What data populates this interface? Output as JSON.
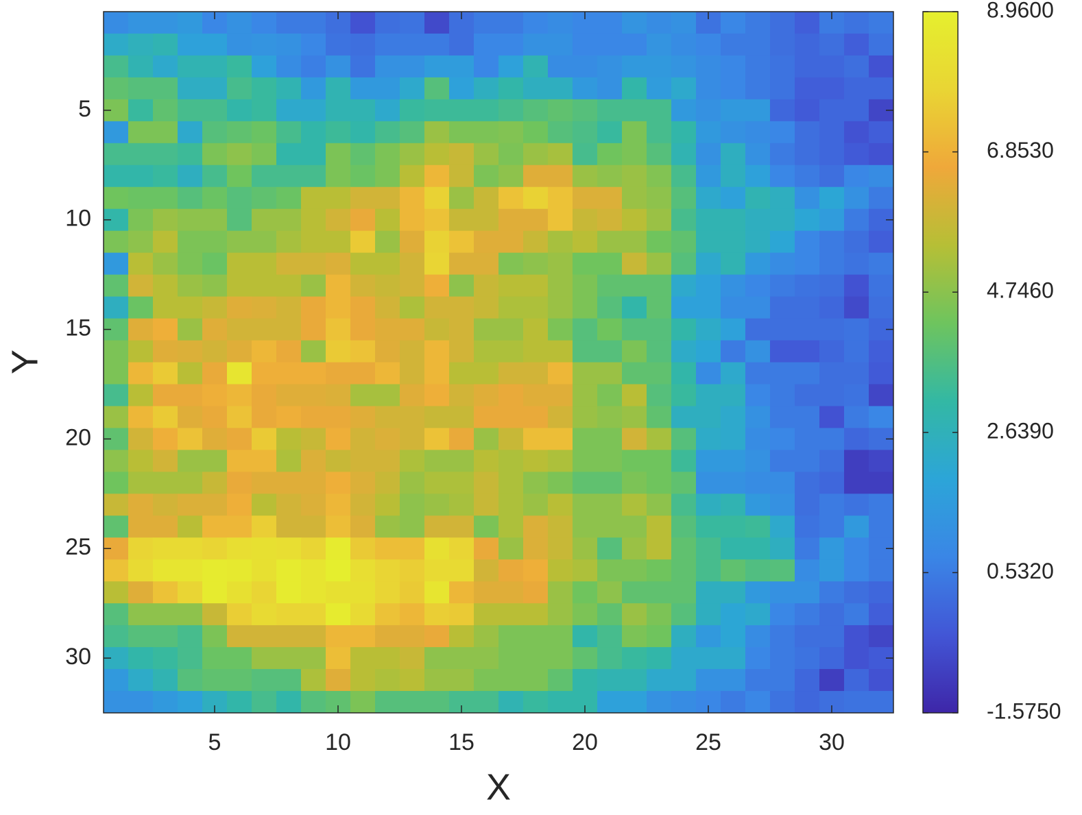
{
  "chart_data": {
    "type": "heatmap",
    "x_label": "X",
    "y_label": "Y",
    "x": [
      1,
      2,
      3,
      4,
      5,
      6,
      7,
      8,
      9,
      10,
      11,
      12,
      13,
      14,
      15,
      16,
      17,
      18,
      19,
      20,
      21,
      22,
      23,
      24,
      25,
      26,
      27,
      28,
      29,
      30,
      31,
      32
    ],
    "y": [
      1,
      2,
      3,
      4,
      5,
      6,
      7,
      8,
      9,
      10,
      11,
      12,
      13,
      14,
      15,
      16,
      17,
      18,
      19,
      20,
      21,
      22,
      23,
      24,
      25,
      26,
      27,
      28,
      29,
      30,
      31,
      32
    ],
    "xlim": [
      0.5,
      32.5
    ],
    "ylim": [
      32.5,
      0.5
    ],
    "xticks": [
      5,
      10,
      15,
      20,
      25,
      30
    ],
    "yticks": [
      5,
      10,
      15,
      20,
      25,
      30
    ],
    "clim": [
      -1.575,
      8.96
    ],
    "cticks": [
      {
        "value": 8.96,
        "label": "8.9600"
      },
      {
        "value": 6.853,
        "label": "6.8530"
      },
      {
        "value": 4.746,
        "label": "4.7460"
      },
      {
        "value": 2.639,
        "label": "2.6390"
      },
      {
        "value": 0.532,
        "label": "0.5320"
      },
      {
        "value": -1.575,
        "label": "-1.5750"
      }
    ],
    "colormap": [
      "#3e26a8",
      "#4256d6",
      "#3a86e6",
      "#2ca5d8",
      "#33b8a4",
      "#6ec45e",
      "#b6bf36",
      "#efa83a",
      "#e9d534",
      "#e5ef2e"
    ],
    "z": [
      [
        1.0,
        1.3,
        1.3,
        1.5,
        0.8,
        1.2,
        0.8,
        0.5,
        0.5,
        0.2,
        -0.5,
        0.2,
        0.3,
        -0.7,
        0.2,
        0.5,
        0.5,
        0.8,
        1.0,
        0.8,
        0.8,
        1.3,
        1.0,
        1.2,
        0.3,
        0.8,
        0.5,
        0.2,
        -0.2,
        0.5,
        0.3,
        0.5
      ],
      [
        2.3,
        2.6,
        2.8,
        1.8,
        1.8,
        1.2,
        1.3,
        1.2,
        0.8,
        0.3,
        0.2,
        0.5,
        0.5,
        0.5,
        0.2,
        0.8,
        0.8,
        1.2,
        1.2,
        0.8,
        0.8,
        0.8,
        1.3,
        1.0,
        0.8,
        0.5,
        0.5,
        0.2,
        0.0,
        0.2,
        -0.2,
        0.3
      ],
      [
        3.5,
        2.8,
        2.2,
        2.8,
        2.8,
        3.2,
        1.8,
        1.0,
        0.6,
        1.2,
        0.3,
        1.2,
        1.2,
        1.6,
        1.6,
        0.8,
        1.8,
        2.8,
        1.0,
        1.0,
        1.2,
        1.5,
        1.5,
        1.3,
        1.0,
        0.8,
        0.5,
        0.3,
        0.0,
        0.0,
        0.2,
        -0.5
      ],
      [
        4.0,
        3.8,
        3.8,
        2.4,
        2.4,
        3.5,
        3.2,
        2.8,
        1.5,
        2.8,
        1.5,
        1.5,
        2.2,
        3.8,
        1.8,
        2.5,
        3.0,
        2.5,
        2.5,
        1.5,
        1.2,
        3.0,
        1.6,
        2.2,
        1.0,
        0.8,
        0.5,
        0.3,
        -0.2,
        -0.2,
        0.0,
        0.0
      ],
      [
        4.5,
        3.2,
        4.0,
        3.5,
        3.5,
        3.0,
        3.2,
        2.2,
        2.2,
        2.8,
        2.8,
        2.2,
        3.2,
        3.3,
        3.3,
        3.3,
        3.5,
        3.8,
        4.0,
        3.8,
        3.5,
        3.5,
        3.5,
        1.5,
        1.2,
        1.5,
        1.5,
        0.0,
        -0.3,
        0.0,
        0.0,
        -0.8
      ],
      [
        1.5,
        4.5,
        4.5,
        2.2,
        3.8,
        4.0,
        4.2,
        3.5,
        3.0,
        3.3,
        3.0,
        3.5,
        3.8,
        5.0,
        4.5,
        4.5,
        4.6,
        4.3,
        3.8,
        3.6,
        3.2,
        4.5,
        3.5,
        3.0,
        1.5,
        1.2,
        1.0,
        0.8,
        0.2,
        0.0,
        -0.5,
        -0.2
      ],
      [
        3.5,
        3.5,
        3.5,
        3.3,
        4.5,
        4.8,
        4.5,
        3.0,
        3.0,
        4.5,
        4.0,
        4.5,
        5.0,
        5.5,
        5.8,
        5.0,
        4.5,
        5.0,
        5.2,
        3.5,
        4.3,
        4.5,
        3.8,
        2.8,
        1.2,
        2.5,
        1.2,
        0.5,
        0.2,
        0.0,
        -0.3,
        -0.5
      ],
      [
        3.0,
        3.0,
        3.2,
        2.5,
        3.5,
        4.3,
        3.5,
        3.5,
        3.5,
        4.5,
        4.2,
        4.5,
        5.5,
        7.0,
        5.8,
        4.5,
        4.8,
        6.3,
        6.3,
        5.0,
        4.8,
        5.0,
        4.6,
        3.5,
        1.5,
        2.5,
        1.8,
        0.8,
        0.5,
        0.2,
        0.8,
        1.0
      ],
      [
        4.3,
        4.2,
        4.2,
        3.8,
        4.2,
        3.8,
        4.0,
        4.2,
        5.5,
        5.5,
        6.0,
        6.0,
        7.0,
        7.7,
        5.0,
        5.8,
        7.3,
        7.7,
        7.3,
        6.2,
        6.2,
        5.0,
        4.8,
        3.8,
        2.2,
        1.8,
        2.8,
        2.5,
        1.2,
        2.0,
        1.2,
        0.5
      ],
      [
        3.0,
        4.5,
        5.0,
        4.8,
        4.8,
        3.8,
        5.0,
        5.0,
        5.5,
        6.0,
        6.5,
        5.5,
        7.0,
        7.3,
        5.8,
        5.8,
        6.3,
        6.3,
        7.3,
        5.8,
        6.0,
        5.5,
        5.0,
        3.5,
        2.8,
        2.8,
        2.5,
        2.5,
        2.0,
        1.6,
        0.5,
        0.0
      ],
      [
        4.5,
        4.8,
        5.5,
        4.5,
        4.5,
        4.8,
        4.8,
        5.2,
        5.5,
        5.5,
        7.5,
        5.0,
        6.3,
        7.7,
        7.3,
        6.3,
        6.3,
        5.8,
        5.2,
        5.5,
        5.0,
        5.0,
        4.3,
        4.0,
        2.8,
        2.8,
        2.5,
        2.0,
        0.8,
        0.5,
        0.2,
        -0.2
      ],
      [
        1.5,
        5.5,
        5.0,
        4.5,
        4.2,
        5.5,
        5.5,
        6.0,
        6.0,
        6.2,
        5.5,
        5.5,
        6.0,
        7.8,
        6.2,
        6.2,
        4.6,
        4.8,
        5.0,
        4.3,
        4.3,
        5.8,
        5.0,
        3.8,
        2.2,
        2.8,
        1.5,
        1.0,
        0.8,
        0.5,
        0.3,
        0.5
      ],
      [
        4.0,
        6.0,
        5.5,
        5.0,
        4.8,
        5.5,
        5.5,
        5.5,
        5.0,
        7.0,
        6.0,
        5.8,
        6.0,
        6.8,
        4.8,
        5.8,
        5.5,
        5.5,
        5.0,
        4.5,
        4.0,
        4.0,
        4.0,
        2.2,
        1.8,
        1.2,
        0.8,
        0.5,
        0.3,
        0.2,
        -0.5,
        0.3
      ],
      [
        2.5,
        4.2,
        5.5,
        5.5,
        5.8,
        6.3,
        6.2,
        6.0,
        6.5,
        7.0,
        6.5,
        6.0,
        5.3,
        6.0,
        6.0,
        5.8,
        5.3,
        5.3,
        5.0,
        4.5,
        3.8,
        3.0,
        4.0,
        1.8,
        1.8,
        1.0,
        1.0,
        0.2,
        0.2,
        0.0,
        -0.7,
        0.2
      ],
      [
        4.0,
        6.3,
        6.8,
        5.0,
        6.3,
        6.0,
        6.0,
        6.0,
        6.5,
        7.3,
        6.5,
        6.3,
        6.3,
        5.8,
        6.0,
        5.0,
        5.0,
        5.5,
        4.5,
        3.8,
        4.3,
        3.8,
        3.8,
        3.0,
        2.3,
        1.8,
        0.2,
        0.2,
        0.2,
        0.2,
        0.3,
        0.0
      ],
      [
        4.5,
        5.5,
        6.3,
        6.2,
        6.0,
        6.3,
        7.0,
        6.5,
        5.0,
        7.5,
        7.3,
        6.3,
        6.0,
        7.0,
        6.0,
        5.3,
        5.3,
        5.5,
        5.5,
        3.8,
        3.8,
        4.5,
        3.8,
        2.3,
        2.0,
        0.5,
        1.2,
        -0.3,
        -0.3,
        0.0,
        0.3,
        -0.2
      ],
      [
        4.5,
        7.0,
        7.5,
        5.5,
        6.5,
        8.5,
        6.8,
        6.8,
        6.8,
        6.5,
        6.5,
        7.0,
        6.0,
        7.0,
        5.5,
        5.5,
        6.0,
        6.0,
        7.0,
        5.0,
        5.0,
        4.0,
        4.0,
        3.0,
        1.0,
        2.2,
        0.5,
        0.5,
        0.5,
        0.2,
        0.2,
        -0.3
      ],
      [
        3.5,
        5.5,
        6.5,
        6.5,
        6.8,
        7.0,
        6.5,
        6.3,
        6.3,
        6.2,
        5.2,
        5.2,
        6.3,
        6.8,
        6.0,
        6.3,
        6.5,
        6.3,
        6.3,
        5.0,
        4.5,
        5.5,
        3.8,
        3.2,
        2.5,
        2.5,
        0.8,
        0.5,
        0.2,
        0.2,
        0.3,
        -0.8
      ],
      [
        5.0,
        7.0,
        7.5,
        6.3,
        6.5,
        7.3,
        6.5,
        6.8,
        6.5,
        6.5,
        6.3,
        6.0,
        6.0,
        5.8,
        5.8,
        6.5,
        6.5,
        6.5,
        6.0,
        5.0,
        4.8,
        5.0,
        4.0,
        2.5,
        2.5,
        2.2,
        1.2,
        0.5,
        0.5,
        -0.5,
        0.5,
        0.8
      ],
      [
        4.0,
        6.0,
        6.8,
        7.3,
        6.3,
        6.5,
        7.5,
        5.5,
        5.8,
        6.8,
        6.0,
        6.2,
        6.0,
        7.3,
        6.5,
        5.0,
        5.8,
        7.2,
        7.2,
        4.5,
        4.5,
        6.0,
        5.2,
        3.8,
        2.3,
        2.2,
        1.0,
        0.8,
        0.5,
        0.5,
        0.0,
        0.2
      ],
      [
        4.8,
        5.5,
        6.0,
        5.0,
        5.0,
        7.0,
        7.0,
        5.3,
        6.2,
        5.8,
        6.0,
        6.0,
        5.3,
        5.0,
        5.0,
        5.5,
        5.3,
        5.5,
        5.3,
        4.5,
        4.5,
        4.3,
        4.3,
        3.3,
        1.5,
        1.5,
        1.2,
        0.5,
        0.5,
        0.2,
        -1.0,
        -0.8
      ],
      [
        4.3,
        5.2,
        5.2,
        5.2,
        5.8,
        6.5,
        6.3,
        6.3,
        6.3,
        6.8,
        6.2,
        5.8,
        5.0,
        5.3,
        5.3,
        5.8,
        5.3,
        4.8,
        4.5,
        4.0,
        4.0,
        4.5,
        4.3,
        4.0,
        1.2,
        1.2,
        1.0,
        1.0,
        0.2,
        0.0,
        -1.0,
        -1.0
      ],
      [
        5.8,
        6.3,
        6.0,
        6.2,
        6.2,
        6.8,
        5.5,
        6.0,
        6.2,
        7.0,
        6.0,
        5.5,
        4.8,
        5.0,
        5.2,
        5.8,
        5.3,
        5.0,
        5.5,
        4.8,
        4.8,
        5.3,
        4.8,
        3.5,
        2.5,
        2.8,
        1.5,
        1.2,
        0.2,
        0.5,
        0.3,
        0.5
      ],
      [
        4.0,
        6.3,
        6.3,
        5.5,
        7.0,
        7.0,
        7.6,
        6.0,
        6.0,
        7.2,
        6.2,
        5.0,
        4.8,
        6.0,
        6.0,
        4.5,
        5.3,
        6.2,
        5.8,
        4.8,
        4.8,
        4.8,
        5.5,
        3.8,
        3.2,
        3.2,
        3.3,
        2.2,
        0.3,
        0.5,
        1.5,
        0.5
      ],
      [
        6.5,
        7.8,
        8.0,
        8.0,
        7.8,
        8.2,
        8.3,
        8.2,
        7.8,
        8.8,
        7.5,
        7.2,
        7.2,
        8.3,
        7.8,
        6.5,
        5.0,
        6.2,
        5.8,
        5.0,
        3.8,
        5.0,
        5.5,
        4.0,
        3.5,
        3.0,
        3.0,
        2.5,
        0.5,
        1.5,
        0.8,
        0.5
      ],
      [
        7.3,
        8.0,
        8.5,
        8.5,
        8.8,
        8.7,
        8.3,
        8.8,
        8.5,
        8.9,
        8.2,
        7.8,
        7.6,
        8.0,
        8.0,
        6.0,
        6.5,
        6.8,
        5.5,
        5.3,
        4.5,
        4.5,
        4.3,
        4.0,
        3.5,
        4.0,
        3.7,
        3.8,
        1.0,
        1.5,
        0.8,
        0.5
      ],
      [
        5.5,
        6.3,
        7.3,
        7.8,
        8.8,
        8.3,
        7.8,
        8.8,
        8.5,
        8.3,
        8.3,
        7.8,
        7.5,
        8.5,
        7.0,
        6.3,
        6.3,
        6.5,
        5.0,
        4.3,
        4.8,
        4.0,
        4.0,
        4.0,
        2.5,
        2.5,
        1.5,
        1.2,
        1.2,
        0.5,
        0.2,
        0.0
      ],
      [
        3.8,
        4.8,
        4.8,
        4.8,
        5.8,
        7.6,
        8.0,
        7.8,
        7.8,
        8.8,
        8.0,
        7.3,
        7.0,
        7.6,
        7.5,
        5.5,
        5.5,
        5.5,
        5.0,
        4.5,
        4.0,
        5.0,
        4.5,
        3.8,
        2.5,
        2.0,
        2.2,
        0.8,
        0.5,
        0.2,
        0.5,
        -0.2
      ],
      [
        3.5,
        3.8,
        3.8,
        3.5,
        4.5,
        6.0,
        6.0,
        6.0,
        6.0,
        7.0,
        7.0,
        6.3,
        6.3,
        6.5,
        5.5,
        5.0,
        4.5,
        4.5,
        4.5,
        3.0,
        3.5,
        4.5,
        4.3,
        2.5,
        1.5,
        2.0,
        1.0,
        0.5,
        0.2,
        0.2,
        -0.5,
        -0.8
      ],
      [
        2.5,
        3.0,
        3.2,
        3.5,
        4.2,
        4.2,
        5.0,
        5.0,
        5.0,
        7.2,
        5.5,
        5.5,
        5.8,
        4.8,
        4.8,
        4.8,
        4.5,
        4.5,
        4.5,
        4.0,
        3.5,
        3.2,
        3.0,
        2.2,
        2.2,
        2.2,
        0.8,
        0.5,
        0.3,
        0.0,
        -0.5,
        -0.3
      ],
      [
        1.5,
        2.3,
        2.8,
        3.8,
        4.0,
        4.0,
        3.8,
        3.8,
        5.3,
        6.3,
        5.5,
        5.3,
        5.5,
        5.0,
        5.0,
        4.5,
        4.5,
        4.5,
        4.0,
        3.0,
        2.8,
        2.8,
        2.2,
        2.2,
        1.2,
        1.2,
        0.5,
        0.5,
        0.0,
        -1.0,
        0.0,
        -0.5
      ],
      [
        1.2,
        1.2,
        1.5,
        1.8,
        2.5,
        3.0,
        3.5,
        3.0,
        3.8,
        4.0,
        4.5,
        3.8,
        3.8,
        3.8,
        3.5,
        3.5,
        2.8,
        3.2,
        3.0,
        3.0,
        1.8,
        1.8,
        1.2,
        1.0,
        0.8,
        0.5,
        0.8,
        0.3,
        0.0,
        0.2,
        0.3,
        0.3
      ]
    ]
  }
}
